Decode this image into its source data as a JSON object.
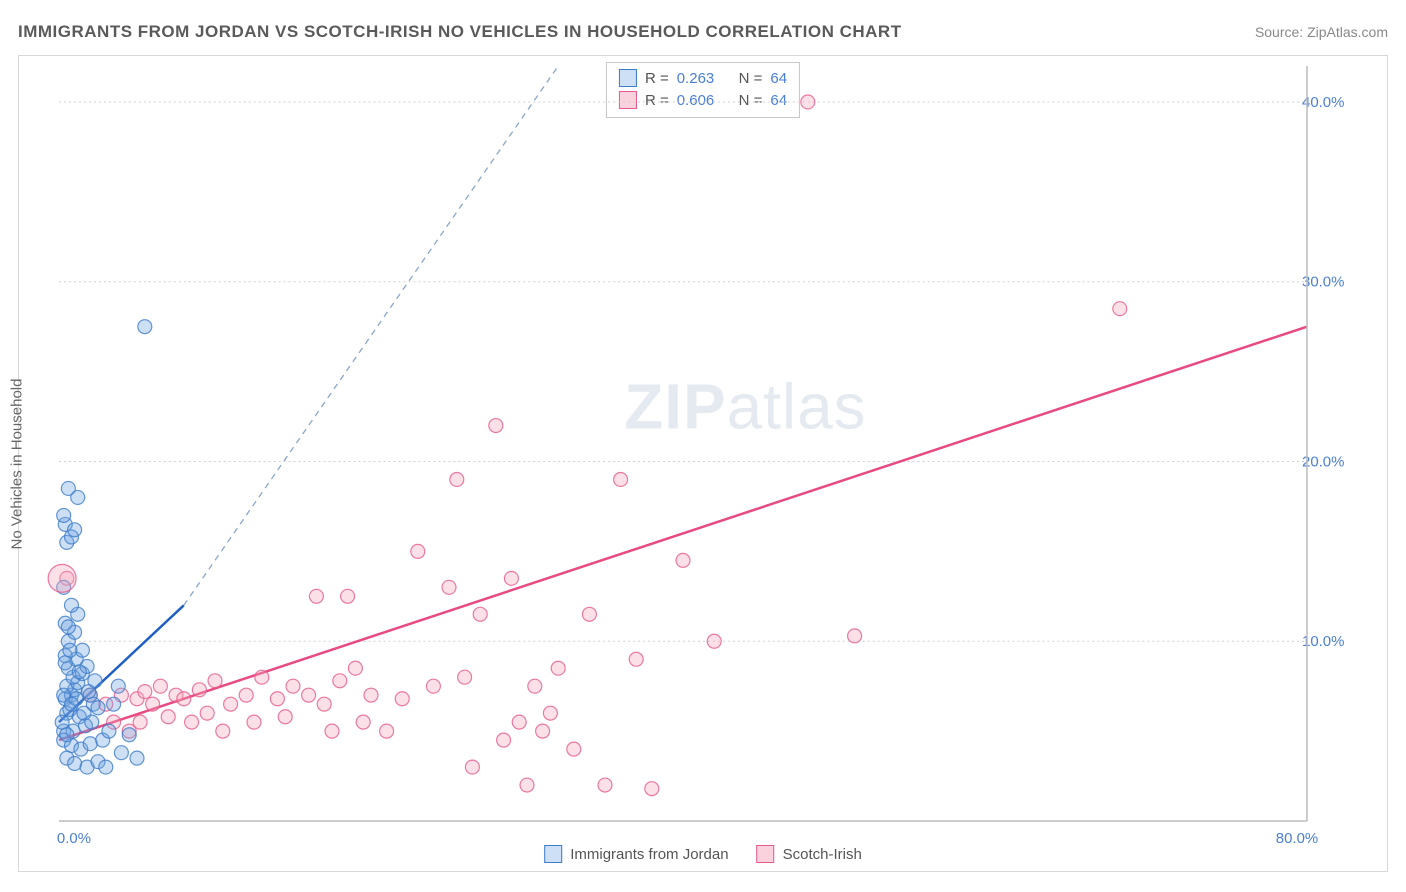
{
  "title": "IMMIGRANTS FROM JORDAN VS SCOTCH-IRISH NO VEHICLES IN HOUSEHOLD CORRELATION CHART",
  "source": "Source: ZipAtlas.com",
  "yaxis_label": "No Vehicles in Household",
  "watermark": {
    "bold": "ZIP",
    "light": "atlas"
  },
  "chart": {
    "type": "scatter",
    "xlim": [
      0,
      80
    ],
    "ylim": [
      0,
      42
    ],
    "x_ticks": [
      {
        "v": 0,
        "label": "0.0%"
      },
      {
        "v": 80,
        "label": "80.0%"
      }
    ],
    "y_ticks": [
      {
        "v": 10,
        "label": "10.0%"
      },
      {
        "v": 20,
        "label": "20.0%"
      },
      {
        "v": 30,
        "label": "30.0%"
      },
      {
        "v": 40,
        "label": "40.0%"
      }
    ],
    "grid_color": "#d0d0d0",
    "background_color": "#ffffff",
    "point_radius": 7,
    "series": [
      {
        "name": "Immigrants from Jordan",
        "color_fill": "#cde0f5",
        "color_stroke": "#3d7cc9",
        "R": "0.263",
        "N": "64",
        "trend": {
          "x1": 0,
          "y1": 5.5,
          "x2": 8,
          "y2": 12.0,
          "dash_extend_x": 32,
          "dash_extend_y": 42
        },
        "points": [
          [
            0.3,
            5.0
          ],
          [
            0.5,
            6.0
          ],
          [
            0.4,
            6.8
          ],
          [
            0.8,
            7.0
          ],
          [
            1.0,
            7.3
          ],
          [
            0.5,
            7.5
          ],
          [
            1.2,
            7.7
          ],
          [
            0.9,
            8.0
          ],
          [
            1.5,
            8.2
          ],
          [
            0.6,
            8.5
          ],
          [
            1.8,
            8.6
          ],
          [
            2.0,
            7.0
          ],
          [
            1.1,
            9.0
          ],
          [
            0.4,
            9.2
          ],
          [
            2.2,
            6.5
          ],
          [
            0.7,
            6.2
          ],
          [
            1.3,
            5.8
          ],
          [
            1.6,
            6.0
          ],
          [
            2.5,
            6.3
          ],
          [
            0.3,
            4.5
          ],
          [
            0.8,
            4.2
          ],
          [
            1.4,
            4.0
          ],
          [
            2.0,
            4.3
          ],
          [
            2.8,
            4.5
          ],
          [
            3.2,
            5.0
          ],
          [
            3.5,
            6.5
          ],
          [
            0.5,
            3.5
          ],
          [
            1.0,
            3.2
          ],
          [
            1.8,
            3.0
          ],
          [
            2.5,
            3.3
          ],
          [
            3.0,
            3.0
          ],
          [
            4.0,
            3.8
          ],
          [
            0.6,
            10.0
          ],
          [
            1.0,
            10.5
          ],
          [
            0.4,
            11.0
          ],
          [
            1.2,
            11.5
          ],
          [
            0.8,
            12.0
          ],
          [
            0.3,
            13.0
          ],
          [
            1.5,
            9.5
          ],
          [
            0.5,
            15.5
          ],
          [
            0.8,
            15.8
          ],
          [
            0.4,
            16.5
          ],
          [
            1.0,
            16.2
          ],
          [
            0.3,
            17.0
          ],
          [
            1.2,
            18.0
          ],
          [
            0.6,
            18.5
          ],
          [
            5.5,
            27.5
          ],
          [
            3.8,
            7.5
          ],
          [
            4.5,
            4.8
          ],
          [
            5.0,
            3.5
          ],
          [
            0.2,
            5.5
          ],
          [
            0.9,
            5.0
          ],
          [
            1.7,
            5.3
          ],
          [
            0.4,
            8.8
          ],
          [
            0.7,
            9.5
          ],
          [
            1.1,
            6.8
          ],
          [
            1.9,
            7.2
          ],
          [
            2.3,
            7.8
          ],
          [
            0.3,
            7.0
          ],
          [
            0.5,
            4.8
          ],
          [
            1.3,
            8.3
          ],
          [
            0.8,
            6.5
          ],
          [
            2.1,
            5.5
          ],
          [
            0.6,
            10.8
          ]
        ]
      },
      {
        "name": "Scotch-Irish",
        "color_fill": "#f9d2dd",
        "color_stroke": "#e65a8a",
        "R": "0.606",
        "N": "64",
        "trend": {
          "x1": 0,
          "y1": 4.5,
          "x2": 80,
          "y2": 27.5
        },
        "points": [
          [
            0.5,
            13.5
          ],
          [
            2.0,
            7.0
          ],
          [
            3.0,
            6.5
          ],
          [
            4.0,
            7.0
          ],
          [
            5.0,
            6.8
          ],
          [
            5.5,
            7.2
          ],
          [
            6.0,
            6.5
          ],
          [
            6.5,
            7.5
          ],
          [
            7.5,
            7.0
          ],
          [
            8.0,
            6.8
          ],
          [
            9.0,
            7.3
          ],
          [
            9.5,
            6.0
          ],
          [
            10.0,
            7.8
          ],
          [
            11.0,
            6.5
          ],
          [
            12.0,
            7.0
          ],
          [
            13.0,
            8.0
          ],
          [
            14.0,
            6.8
          ],
          [
            15.0,
            7.5
          ],
          [
            16.0,
            7.0
          ],
          [
            16.5,
            12.5
          ],
          [
            17.0,
            6.5
          ],
          [
            18.0,
            7.8
          ],
          [
            18.5,
            12.5
          ],
          [
            19.0,
            8.5
          ],
          [
            20.0,
            7.0
          ],
          [
            22.0,
            6.8
          ],
          [
            23.0,
            15.0
          ],
          [
            24.0,
            7.5
          ],
          [
            25.0,
            13.0
          ],
          [
            25.5,
            19.0
          ],
          [
            26.0,
            8.0
          ],
          [
            27.0,
            11.5
          ],
          [
            28.0,
            22.0
          ],
          [
            29.0,
            13.5
          ],
          [
            30.0,
            2.0
          ],
          [
            30.5,
            7.5
          ],
          [
            31.0,
            5.0
          ],
          [
            32.0,
            8.5
          ],
          [
            34.0,
            11.5
          ],
          [
            35.0,
            2.0
          ],
          [
            36.0,
            19.0
          ],
          [
            37.0,
            9.0
          ],
          [
            38.0,
            1.8
          ],
          [
            40.0,
            14.5
          ],
          [
            42.0,
            10.0
          ],
          [
            48.0,
            40.0
          ],
          [
            51.0,
            10.3
          ],
          [
            68.0,
            28.5
          ],
          [
            3.5,
            5.5
          ],
          [
            4.5,
            5.0
          ],
          [
            5.2,
            5.5
          ],
          [
            7.0,
            5.8
          ],
          [
            8.5,
            5.5
          ],
          [
            10.5,
            5.0
          ],
          [
            12.5,
            5.5
          ],
          [
            14.5,
            5.8
          ],
          [
            17.5,
            5.0
          ],
          [
            19.5,
            5.5
          ],
          [
            21.0,
            5.0
          ],
          [
            26.5,
            3.0
          ],
          [
            28.5,
            4.5
          ],
          [
            33.0,
            4.0
          ],
          [
            29.5,
            5.5
          ],
          [
            31.5,
            6.0
          ]
        ]
      }
    ]
  },
  "legend_top": [
    {
      "sq": "blue",
      "r_label": "R =",
      "r_val": "0.263",
      "n_label": "N =",
      "n_val": "64"
    },
    {
      "sq": "pink",
      "r_label": "R =",
      "r_val": "0.606",
      "n_label": "N =",
      "n_val": "64"
    }
  ],
  "legend_bottom": [
    {
      "sq": "blue",
      "label": "Immigrants from Jordan"
    },
    {
      "sq": "pink",
      "label": "Scotch-Irish"
    }
  ]
}
